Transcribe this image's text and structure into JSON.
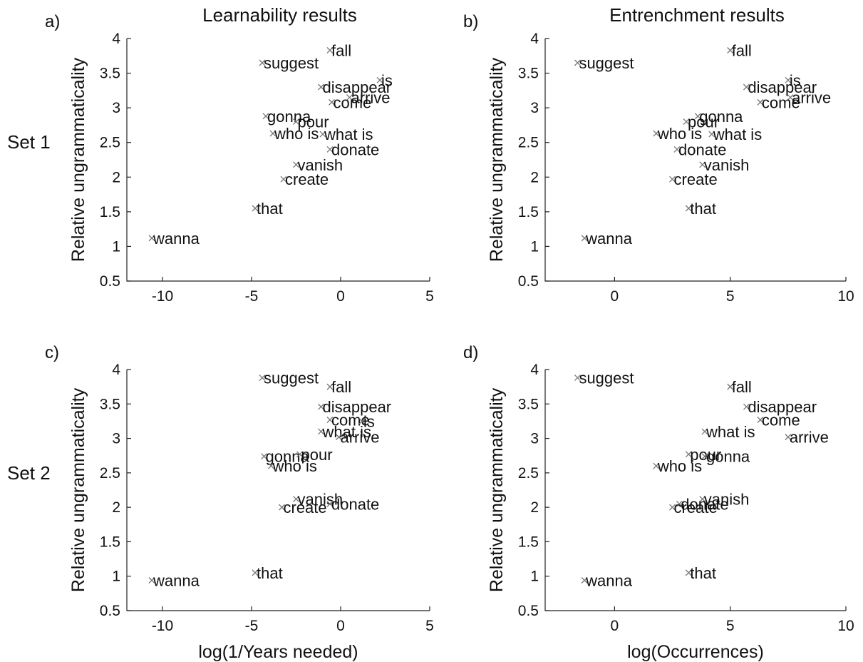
{
  "row_labels": [
    "Set 1",
    "Set 2"
  ],
  "chart_data": [
    {
      "type": "scatter",
      "panel": "a)",
      "title": "Learnability results",
      "xlabel": "",
      "ylabel": "Relative ungrammaticality",
      "xlim": [
        -12,
        5
      ],
      "ylim": [
        0.5,
        4
      ],
      "xticks": [
        -10,
        -5,
        0,
        5
      ],
      "yticks": [
        0.5,
        1,
        1.5,
        2,
        2.5,
        3,
        3.5,
        4
      ],
      "marker": "x",
      "points": [
        {
          "label": "fall",
          "x": -0.6,
          "y": 3.83
        },
        {
          "label": "suggest",
          "x": -4.4,
          "y": 3.65
        },
        {
          "label": "is",
          "x": 2.2,
          "y": 3.4
        },
        {
          "label": "disappear",
          "x": -1.1,
          "y": 3.3
        },
        {
          "label": "arrive",
          "x": 0.5,
          "y": 3.15
        },
        {
          "label": "come",
          "x": -0.5,
          "y": 3.08
        },
        {
          "label": "gonna",
          "x": -4.2,
          "y": 2.88
        },
        {
          "label": "pour",
          "x": -2.5,
          "y": 2.8
        },
        {
          "label": "who is",
          "x": -3.8,
          "y": 2.63
        },
        {
          "label": "what is",
          "x": -1.0,
          "y": 2.62
        },
        {
          "label": "donate",
          "x": -0.6,
          "y": 2.4
        },
        {
          "label": "vanish",
          "x": -2.5,
          "y": 2.18
        },
        {
          "label": "create",
          "x": -3.2,
          "y": 1.97
        },
        {
          "label": "that",
          "x": -4.8,
          "y": 1.55
        },
        {
          "label": "wanna",
          "x": -10.6,
          "y": 1.12
        }
      ]
    },
    {
      "type": "scatter",
      "panel": "b)",
      "title": "Entrenchment results",
      "xlabel": "",
      "ylabel": "Relative ungrammaticality",
      "xlim": [
        -3,
        10
      ],
      "ylim": [
        0.5,
        4
      ],
      "xticks": [
        0,
        5,
        10
      ],
      "yticks": [
        0.5,
        1,
        1.5,
        2,
        2.5,
        3,
        3.5,
        4
      ],
      "marker": "x",
      "points": [
        {
          "label": "fall",
          "x": 5.0,
          "y": 3.83
        },
        {
          "label": "suggest",
          "x": -1.6,
          "y": 3.65
        },
        {
          "label": "is",
          "x": 7.5,
          "y": 3.4
        },
        {
          "label": "disappear",
          "x": 5.7,
          "y": 3.3
        },
        {
          "label": "arrive",
          "x": 7.6,
          "y": 3.15
        },
        {
          "label": "come",
          "x": 6.3,
          "y": 3.08
        },
        {
          "label": "gonna",
          "x": 3.6,
          "y": 2.88
        },
        {
          "label": "pour",
          "x": 3.1,
          "y": 2.8
        },
        {
          "label": "who is",
          "x": 1.8,
          "y": 2.63
        },
        {
          "label": "what is",
          "x": 4.2,
          "y": 2.62
        },
        {
          "label": "donate",
          "x": 2.7,
          "y": 2.4
        },
        {
          "label": "vanish",
          "x": 3.8,
          "y": 2.18
        },
        {
          "label": "create",
          "x": 2.5,
          "y": 1.97
        },
        {
          "label": "that",
          "x": 3.2,
          "y": 1.55
        },
        {
          "label": "wanna",
          "x": -1.3,
          "y": 1.12
        }
      ]
    },
    {
      "type": "scatter",
      "panel": "c)",
      "title": "",
      "xlabel": "log(1/Years needed)",
      "ylabel": "Relative ungrammaticality",
      "xlim": [
        -12,
        5
      ],
      "ylim": [
        0.5,
        4
      ],
      "xticks": [
        -10,
        -5,
        0,
        5
      ],
      "yticks": [
        0.5,
        1,
        1.5,
        2,
        2.5,
        3,
        3.5,
        4
      ],
      "marker": "x",
      "points": [
        {
          "label": "suggest",
          "x": -4.4,
          "y": 3.88
        },
        {
          "label": "fall",
          "x": -0.6,
          "y": 3.75
        },
        {
          "label": "disappear",
          "x": -1.1,
          "y": 3.46
        },
        {
          "label": "come",
          "x": -0.6,
          "y": 3.27
        },
        {
          "label": "is",
          "x": 1.2,
          "y": 3.25
        },
        {
          "label": "what is",
          "x": -1.1,
          "y": 3.1
        },
        {
          "label": "arrive",
          "x": -0.1,
          "y": 3.02
        },
        {
          "label": "gonna",
          "x": -4.3,
          "y": 2.74
        },
        {
          "label": "pour",
          "x": -2.3,
          "y": 2.77
        },
        {
          "label": "who is",
          "x": -3.9,
          "y": 2.6
        },
        {
          "label": "vanish",
          "x": -2.5,
          "y": 2.12
        },
        {
          "label": "donate",
          "x": -0.6,
          "y": 2.05
        },
        {
          "label": "create",
          "x": -3.3,
          "y": 2.0
        },
        {
          "label": "that",
          "x": -4.8,
          "y": 1.05
        },
        {
          "label": "wanna",
          "x": -10.6,
          "y": 0.94
        }
      ]
    },
    {
      "type": "scatter",
      "panel": "d)",
      "title": "",
      "xlabel": "log(Occurrences)",
      "ylabel": "Relative ungrammaticality",
      "xlim": [
        -3,
        10
      ],
      "ylim": [
        0.5,
        4
      ],
      "xticks": [
        0,
        5,
        10
      ],
      "yticks": [
        0.5,
        1,
        1.5,
        2,
        2.5,
        3,
        3.5,
        4
      ],
      "marker": "x",
      "points": [
        {
          "label": "suggest",
          "x": -1.6,
          "y": 3.88
        },
        {
          "label": "fall",
          "x": 5.0,
          "y": 3.75
        },
        {
          "label": "disappear",
          "x": 5.7,
          "y": 3.46
        },
        {
          "label": "come",
          "x": 6.3,
          "y": 3.27
        },
        {
          "label": "what is",
          "x": 3.9,
          "y": 3.1
        },
        {
          "label": "arrive",
          "x": 7.5,
          "y": 3.02
        },
        {
          "label": "pour",
          "x": 3.2,
          "y": 2.77
        },
        {
          "label": "gonna",
          "x": 3.9,
          "y": 2.74
        },
        {
          "label": "who is",
          "x": 1.8,
          "y": 2.6
        },
        {
          "label": "vanish",
          "x": 3.8,
          "y": 2.12
        },
        {
          "label": "donate",
          "x": 2.8,
          "y": 2.05
        },
        {
          "label": "create",
          "x": 2.5,
          "y": 2.0
        },
        {
          "label": "that",
          "x": 3.2,
          "y": 1.05
        },
        {
          "label": "wanna",
          "x": -1.3,
          "y": 0.94
        }
      ]
    }
  ]
}
